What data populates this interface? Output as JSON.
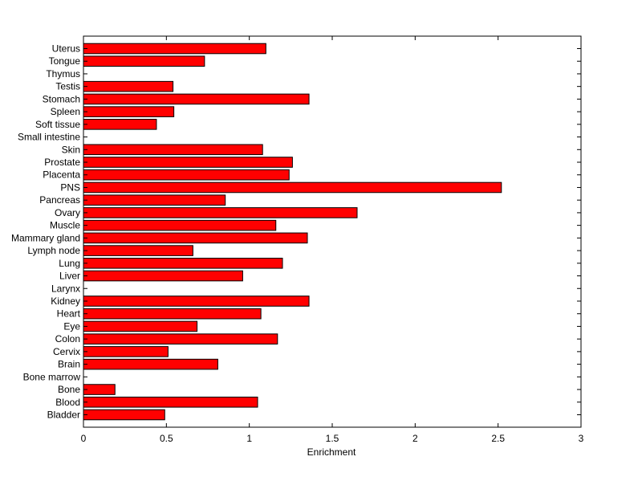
{
  "chart_data": {
    "type": "bar",
    "orientation": "horizontal",
    "xlabel": "Enrichment",
    "ylabel": "",
    "title": "",
    "xlim": [
      0,
      3
    ],
    "x_ticks": [
      0,
      0.5,
      1,
      1.5,
      2,
      2.5,
      3
    ],
    "x_tick_labels": [
      "0",
      "0.5",
      "1",
      "1.5",
      "2",
      "2.5",
      "3"
    ],
    "grid": false,
    "bar_color": "#ff0000",
    "bar_edge_color": "#000000",
    "categories": [
      "Uterus",
      "Tongue",
      "Thymus",
      "Testis",
      "Stomach",
      "Spleen",
      "Soft tissue",
      "Small intestine",
      "Skin",
      "Prostate",
      "Placenta",
      "PNS",
      "Pancreas",
      "Ovary",
      "Muscle",
      "Mammary gland",
      "Lymph node",
      "Lung",
      "Liver",
      "Larynx",
      "Kidney",
      "Heart",
      "Eye",
      "Colon",
      "Cervix",
      "Brain",
      "Bone marrow",
      "Bone",
      "Blood",
      "Bladder"
    ],
    "values": [
      1.1,
      0.73,
      0,
      0.54,
      1.36,
      0.545,
      0.44,
      0,
      1.08,
      1.26,
      1.24,
      2.52,
      0.855,
      1.65,
      1.16,
      1.35,
      0.66,
      1.2,
      0.96,
      0,
      1.36,
      1.07,
      0.685,
      1.17,
      0.51,
      0.81,
      0,
      0.19,
      1.05,
      0.49
    ]
  }
}
